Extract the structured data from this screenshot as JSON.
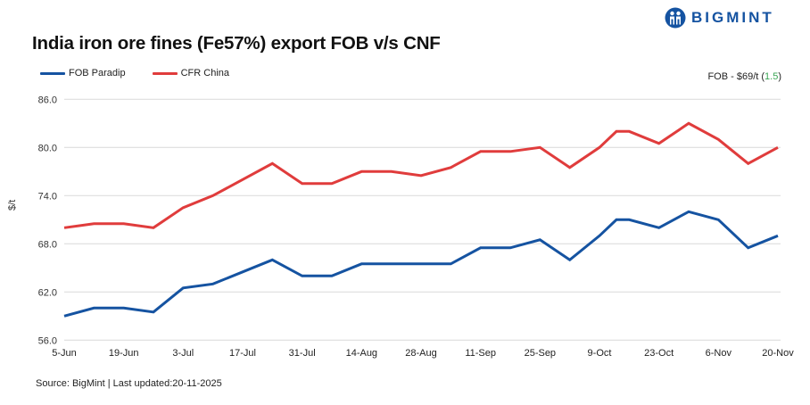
{
  "header": {
    "title": "India iron ore fines (Fe57%) export FOB v/s CNF",
    "logo_text": "BIGMINT"
  },
  "colors": {
    "fob": "#1553a1",
    "cfr": "#e03c3c",
    "grid": "#d9d9d9",
    "brand": "#1553a1",
    "positive_delta": "#3aa655"
  },
  "legend": [
    {
      "label": "FOB Paradip",
      "color": "#1553a1"
    },
    {
      "label": "CFR China",
      "color": "#e03c3c"
    }
  ],
  "note": {
    "prefix": "FOB - $69/t (",
    "delta": "1.5",
    "suffix": ")"
  },
  "footer": {
    "source": "Source: BigMint | Last updated:20-11-2025"
  },
  "chart_data": {
    "type": "line",
    "title": "India iron ore fines (Fe57%) export FOB v/s CNF",
    "xlabel": "",
    "ylabel": "$/t",
    "ylim": [
      56,
      86
    ],
    "yticks": [
      "56.0",
      "62.0",
      "68.0",
      "74.0",
      "80.0",
      "86.0"
    ],
    "xtick_labels": [
      "5-Jun",
      "19-Jun",
      "3-Jul",
      "17-Jul",
      "31-Jul",
      "14-Aug",
      "28-Aug",
      "11-Sep",
      "25-Sep",
      "9-Oct",
      "23-Oct",
      "6-Nov",
      "20-Nov"
    ],
    "grid": true,
    "legend_position": "top-left",
    "x_days_from_start": [
      0,
      7,
      14,
      21,
      28,
      35,
      42,
      49,
      56,
      63,
      70,
      77,
      84,
      91,
      98,
      105,
      112,
      119,
      126,
      130,
      133,
      140,
      147,
      154,
      161,
      168
    ],
    "series": [
      {
        "name": "FOB Paradip",
        "color": "#1553a1",
        "values": [
          59.0,
          60.0,
          60.0,
          59.5,
          62.5,
          63.0,
          64.5,
          66.0,
          64.0,
          64.0,
          65.5,
          65.5,
          65.5,
          65.5,
          67.5,
          67.5,
          68.5,
          66.0,
          69.0,
          71.0,
          71.0,
          70.0,
          72.0,
          71.0,
          67.5,
          69.0
        ]
      },
      {
        "name": "CFR China",
        "color": "#e03c3c",
        "values": [
          70.0,
          70.5,
          70.5,
          70.0,
          72.5,
          74.0,
          76.0,
          78.0,
          75.5,
          75.5,
          77.0,
          77.0,
          76.5,
          77.5,
          79.5,
          79.5,
          80.0,
          77.5,
          80.0,
          82.0,
          82.0,
          80.5,
          83.0,
          81.0,
          78.0,
          80.0
        ]
      }
    ],
    "annotation": "FOB - $69/t (1.5)"
  }
}
